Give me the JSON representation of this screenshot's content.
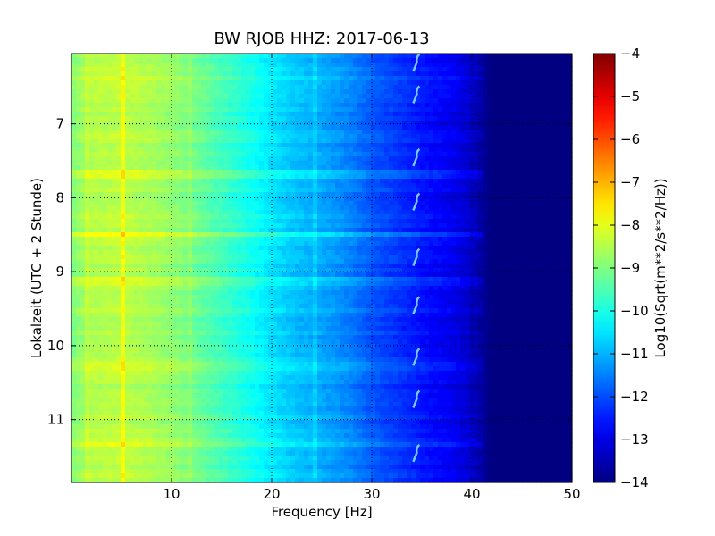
{
  "chart_data": {
    "type": "heatmap",
    "title": "BW RJOB HHZ: 2017-06-13",
    "xlabel": "Frequency [Hz]",
    "ylabel": "Lokalzeit (UTC + 2 Stunde)",
    "colorbar_label": "Log10(Sqrt(m**2/s**2/Hz))",
    "xlim": [
      0,
      50
    ],
    "ylim": [
      11.85,
      6.05
    ],
    "y_inverted": true,
    "xticks": [
      10,
      20,
      30,
      40,
      50
    ],
    "yticks": [
      7,
      8,
      9,
      10,
      11
    ],
    "clim": [
      -14,
      -4
    ],
    "colorbar_ticks": [
      -4,
      -5,
      -6,
      -7,
      -8,
      -9,
      -10,
      -11,
      -12,
      -13,
      -14
    ],
    "colormap": "jet",
    "grid": true,
    "spectrum_profile": {
      "frequency_hz": [
        0,
        2,
        5,
        8,
        10,
        12,
        15,
        18,
        20,
        22,
        25,
        28,
        30,
        33,
        35,
        38,
        40,
        41,
        42,
        45,
        50
      ],
      "log_psd": [
        -9.0,
        -8.5,
        -8.4,
        -8.6,
        -8.8,
        -9.1,
        -9.6,
        -10.1,
        -10.5,
        -10.8,
        -11.1,
        -11.5,
        -11.9,
        -12.3,
        -12.6,
        -12.9,
        -13.3,
        -13.7,
        -14.0,
        -14.0,
        -14.0
      ]
    },
    "horizontal_bands": [
      {
        "time": 8.5,
        "delta": 0.7
      },
      {
        "time": 9.15,
        "delta": 0.35
      },
      {
        "time": 11.32,
        "delta": 0.4
      },
      {
        "time": 7.7,
        "delta": 0.3
      },
      {
        "time": 10.3,
        "delta": 0.3
      },
      {
        "time": 6.4,
        "delta": 0.25
      }
    ],
    "vertical_lines": [
      {
        "frequency": 5.0,
        "delta": 0.6
      },
      {
        "frequency": 1.5,
        "delta": 0.25
      },
      {
        "frequency": 12.0,
        "delta": 0.2
      },
      {
        "frequency": 24.5,
        "delta": 0.3
      }
    ],
    "hook_feature_hz": 34.5,
    "hook_times": [
      6.17,
      6.6,
      7.45,
      8.05,
      8.8,
      9.45,
      10.15,
      10.72,
      11.45
    ]
  }
}
